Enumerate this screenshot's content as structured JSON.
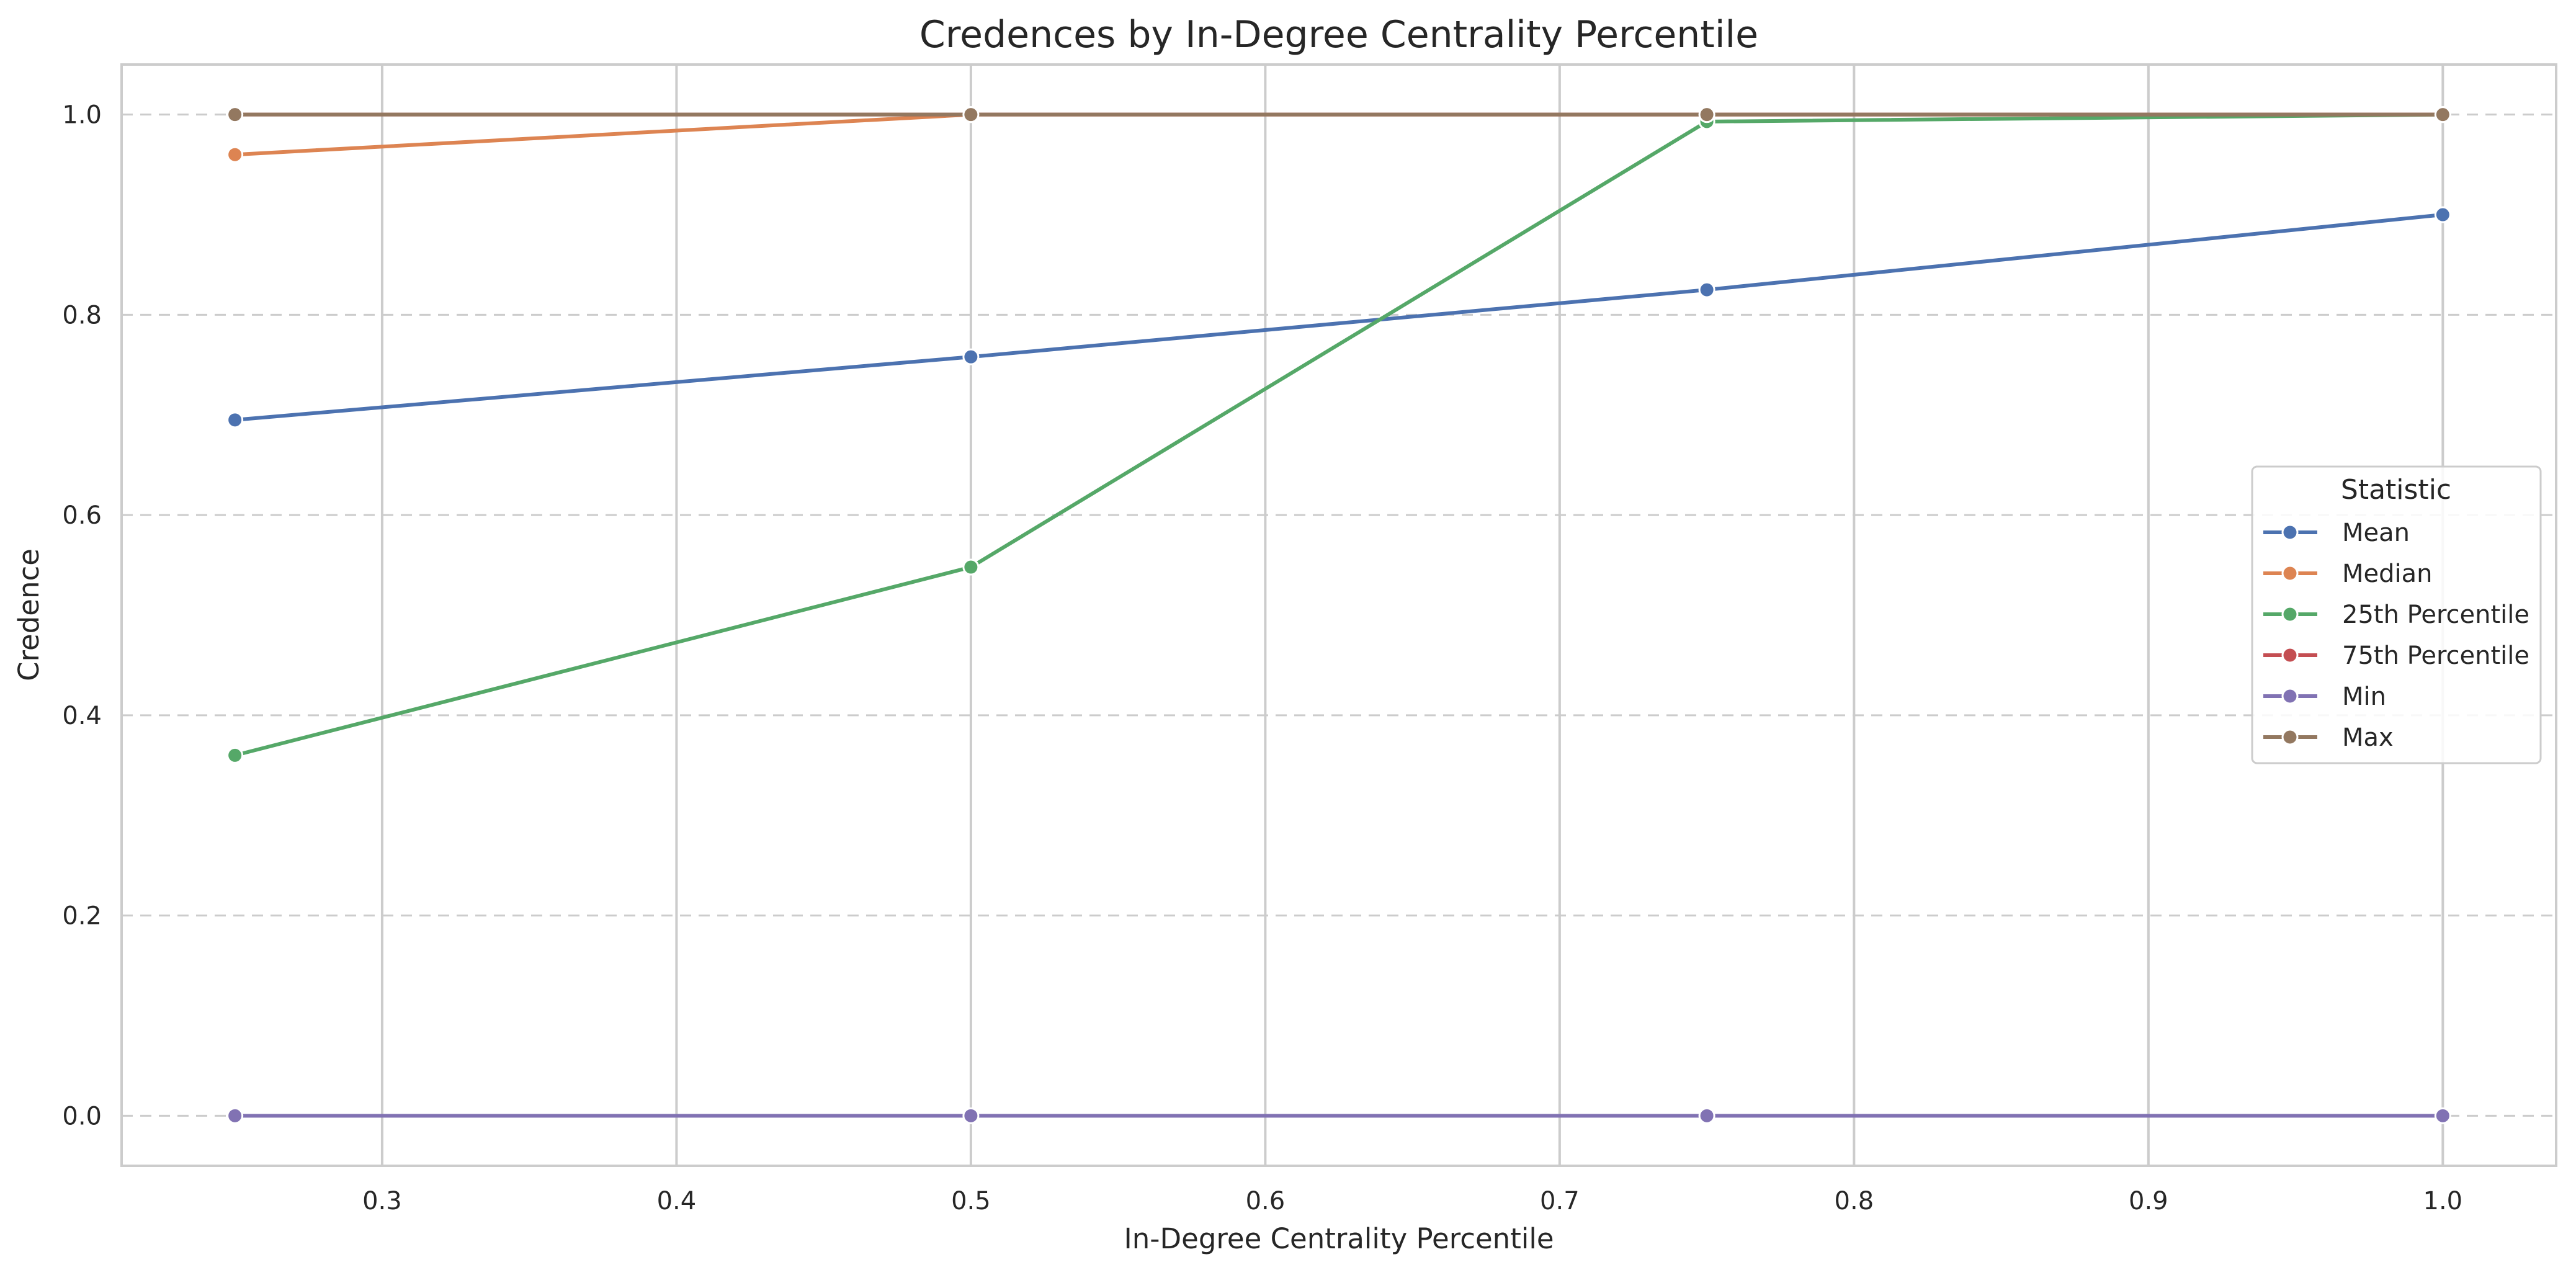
{
  "chart_data": {
    "type": "line",
    "title": "Credences by In-Degree Centrality Percentile",
    "xlabel": "In-Degree Centrality Percentile",
    "ylabel": "Credence",
    "xlim": [
      0.2115,
      1.0385
    ],
    "ylim": [
      -0.05,
      1.05
    ],
    "x_ticks": [
      "0.3",
      "0.4",
      "0.5",
      "0.6",
      "0.7",
      "0.8",
      "0.9",
      "1.0"
    ],
    "y_ticks": [
      "0.0",
      "0.2",
      "0.4",
      "0.6",
      "0.8",
      "1.0"
    ],
    "x": [
      0.25,
      0.5,
      0.75,
      1.0
    ],
    "grid": true,
    "legend": {
      "title": "Statistic",
      "placement": "center-right"
    },
    "series": [
      {
        "name": "Mean",
        "color": "#4c72b0",
        "values": [
          0.695,
          0.758,
          0.825,
          0.9
        ]
      },
      {
        "name": "Median",
        "color": "#dd8452",
        "values": [
          0.96,
          1.0,
          1.0,
          1.0
        ]
      },
      {
        "name": "25th Percentile",
        "color": "#55a868",
        "values": [
          0.36,
          0.548,
          0.993,
          1.0
        ]
      },
      {
        "name": "75th Percentile",
        "color": "#c44e52",
        "values": [
          1.0,
          1.0,
          1.0,
          1.0
        ]
      },
      {
        "name": "Min",
        "color": "#8172b3",
        "values": [
          0.0,
          0.0,
          0.0,
          0.0
        ]
      },
      {
        "name": "Max",
        "color": "#937860",
        "values": [
          1.0,
          1.0,
          1.0,
          1.0
        ]
      }
    ]
  }
}
